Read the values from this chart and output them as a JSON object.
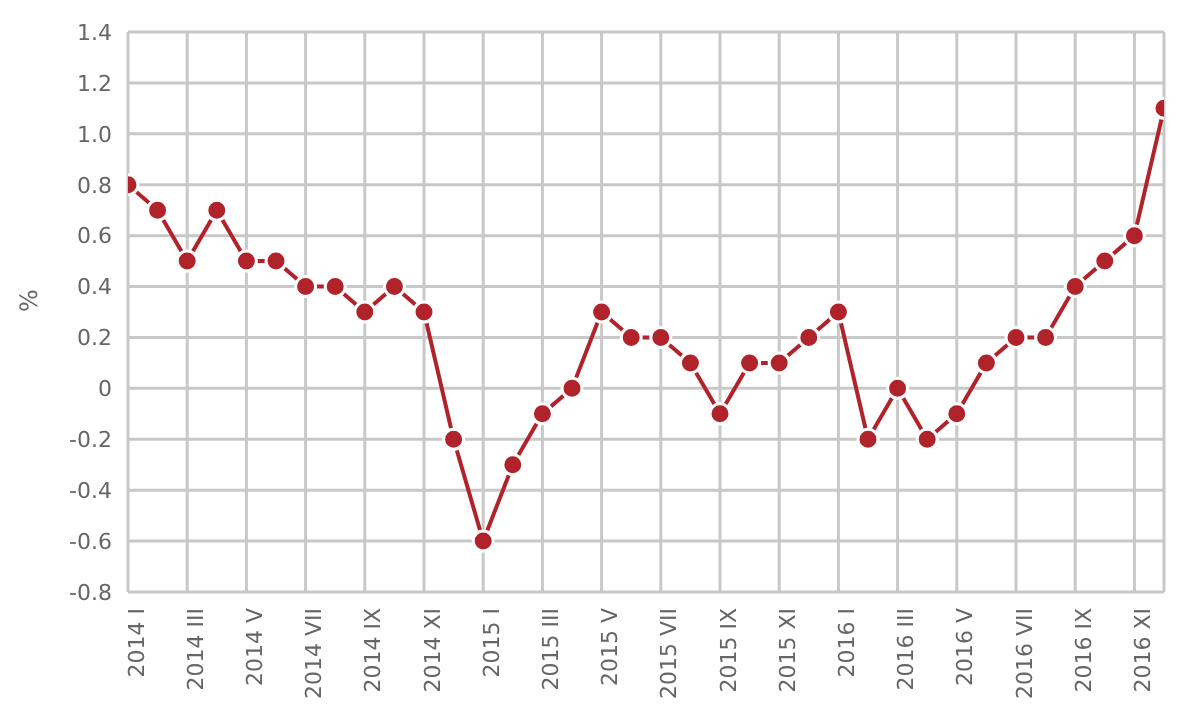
{
  "chart_data": {
    "type": "line",
    "ylabel": "%",
    "categories": [
      "2014 I",
      null,
      "2014 III",
      null,
      "2014 V",
      null,
      "2014 VII",
      null,
      "2014 IX",
      null,
      "2014 XI",
      null,
      "2015 I",
      null,
      "2015 III",
      null,
      "2015 V",
      null,
      "2015 VII",
      null,
      "2015 IX",
      null,
      "2015 XI",
      null,
      "2016 I",
      null,
      "2016 III",
      null,
      "2016 V",
      null,
      "2016 VII",
      null,
      "2016 IX",
      null,
      "2016 XI",
      null
    ],
    "series": [
      {
        "color": "#b0232a",
        "values": [
          0.8,
          0.7,
          0.5,
          0.7,
          0.5,
          0.5,
          0.4,
          0.4,
          0.3,
          0.4,
          0.3,
          -0.2,
          -0.6,
          -0.3,
          -0.1,
          0,
          0.3,
          0.2,
          0.2,
          0.1,
          -0.1,
          0.1,
          0.1,
          0.2,
          0.3,
          -0.2,
          0,
          -0.2,
          -0.1,
          0.1,
          0.2,
          0.2,
          0.4,
          0.5,
          0.6,
          1.1
        ]
      }
    ],
    "ylim": [
      -0.8,
      1.4
    ],
    "yticks": [
      -0.8,
      -0.6,
      -0.4,
      -0.2,
      0,
      0.2,
      0.4,
      0.6,
      0.8,
      {
        "value": 1,
        "label": "1.0"
      },
      1.2,
      1.4
    ],
    "grid": true,
    "marker": "circle",
    "line_style": "solid",
    "legend": false
  }
}
